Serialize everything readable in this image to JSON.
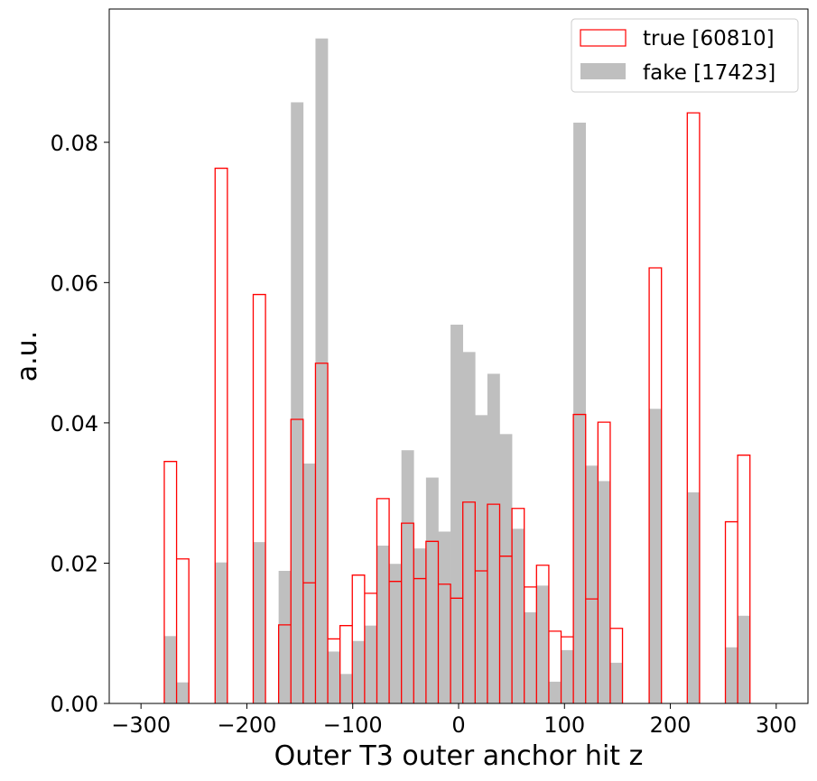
{
  "chart_data": {
    "type": "histogram",
    "xlabel": "Outer T3 outer anchor hit z",
    "ylabel": "a.u.",
    "xlim": [
      -330,
      330
    ],
    "ylim": [
      0,
      0.099
    ],
    "bin_width": 11.6,
    "x_ticks": [
      -300,
      -200,
      -100,
      0,
      100,
      200,
      300
    ],
    "x_tick_labels": [
      "−300",
      "−200",
      "−100",
      "0",
      "100",
      "200",
      "300"
    ],
    "y_ticks": [
      0,
      0.02,
      0.04,
      0.06,
      0.08
    ],
    "y_tick_labels": [
      "0.00",
      "0.02",
      "0.04",
      "0.06",
      "0.08"
    ],
    "legend": {
      "position": "top-right"
    },
    "series": [
      {
        "name": "true [60810]",
        "style": "step",
        "color": "#ff0000",
        "bins": [
          [
            -278,
            0.0345
          ],
          [
            -266.4,
            0.0206
          ],
          [
            -230,
            0.0763
          ],
          [
            -194,
            0.0583
          ],
          [
            -170,
            0.0112
          ],
          [
            -158.4,
            0.0405
          ],
          [
            -146.8,
            0.0172
          ],
          [
            -135.2,
            0.0485
          ],
          [
            -123.6,
            0.0092
          ],
          [
            -112,
            0.0111
          ],
          [
            -100.4,
            0.0183
          ],
          [
            -88.8,
            0.0157
          ],
          [
            -77.2,
            0.0292
          ],
          [
            -65.6,
            0.0174
          ],
          [
            -54,
            0.0257
          ],
          [
            -42.4,
            0.0178
          ],
          [
            -30.8,
            0.0231
          ],
          [
            -19.2,
            0.017
          ],
          [
            -7.6,
            0.015
          ],
          [
            4,
            0.0287
          ],
          [
            15.6,
            0.0189
          ],
          [
            27.2,
            0.0284
          ],
          [
            38.8,
            0.021
          ],
          [
            50.4,
            0.0278
          ],
          [
            62,
            0.0166
          ],
          [
            73.6,
            0.0197
          ],
          [
            85.2,
            0.0103
          ],
          [
            96.8,
            0.0095
          ],
          [
            108.4,
            0.0412
          ],
          [
            120,
            0.0149
          ],
          [
            131.6,
            0.0401
          ],
          [
            143.2,
            0.0107
          ],
          [
            180,
            0.0621
          ],
          [
            216,
            0.0842
          ],
          [
            252,
            0.0259
          ],
          [
            263.6,
            0.0354
          ]
        ]
      },
      {
        "name": "fake [17423]",
        "style": "filled",
        "color": "#bfbfbf",
        "bins": [
          [
            -278,
            0.0096
          ],
          [
            -266.4,
            0.003
          ],
          [
            -230,
            0.0201
          ],
          [
            -194,
            0.023
          ],
          [
            -170,
            0.0189
          ],
          [
            -158.4,
            0.0857
          ],
          [
            -146.8,
            0.0342
          ],
          [
            -135.2,
            0.0948
          ],
          [
            -123.6,
            0.0074
          ],
          [
            -112,
            0.0042
          ],
          [
            -100.4,
            0.0089
          ],
          [
            -88.8,
            0.0111
          ],
          [
            -77.2,
            0.0225
          ],
          [
            -65.6,
            0.0199
          ],
          [
            -54,
            0.0361
          ],
          [
            -42.4,
            0.0221
          ],
          [
            -30.8,
            0.0322
          ],
          [
            -19.2,
            0.0245
          ],
          [
            -7.6,
            0.054
          ],
          [
            4,
            0.0501
          ],
          [
            15.6,
            0.0411
          ],
          [
            27.2,
            0.047
          ],
          [
            38.8,
            0.0384
          ],
          [
            50.4,
            0.0249
          ],
          [
            62,
            0.013
          ],
          [
            73.6,
            0.0168
          ],
          [
            85.2,
            0.0031
          ],
          [
            96.8,
            0.0076
          ],
          [
            108.4,
            0.0828
          ],
          [
            120,
            0.0339
          ],
          [
            131.6,
            0.0317
          ],
          [
            143.2,
            0.0058
          ],
          [
            180,
            0.042
          ],
          [
            216,
            0.0301
          ],
          [
            252,
            0.008
          ],
          [
            263.6,
            0.0125
          ]
        ]
      }
    ]
  }
}
